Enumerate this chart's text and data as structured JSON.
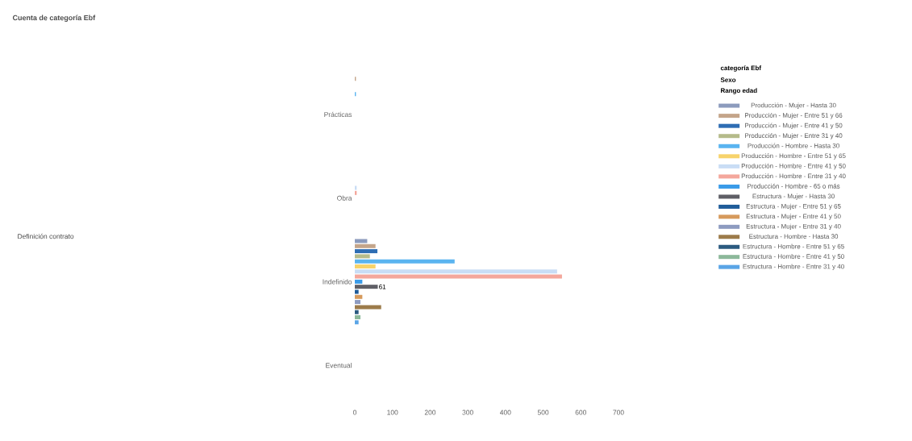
{
  "chart_data": {
    "type": "bar",
    "orientation": "horizontal",
    "title": "Cuenta de categoría Ebf",
    "legend_title": "categoría Ebf",
    "annotations": [
      "Sexo",
      "Rango edad",
      "Definición contrato"
    ],
    "categories": [
      "Prácticas",
      "Obra",
      "Indefinido",
      "Eventual"
    ],
    "xlim": [
      0,
      700
    ],
    "xticks": [
      0,
      100,
      200,
      300,
      400,
      500,
      600,
      700
    ],
    "legend": "right",
    "grid": false,
    "series": [
      {
        "name": "Producción - Mujer - Hasta 30",
        "color": "#8c9bbd",
        "values": [
          null,
          null,
          33,
          null
        ]
      },
      {
        "name": "Producción - Mujer - Entre 51 y 66",
        "color": "#c4a58a",
        "values": [
          3,
          null,
          55,
          null
        ]
      },
      {
        "name": "Producción - Mujer - Entre 41 y 50",
        "color": "#2e6db3",
        "values": [
          null,
          null,
          60,
          null
        ]
      },
      {
        "name": "Producción - Mujer - Entre 31 y 40",
        "color": "#b5bb8a",
        "values": [
          null,
          null,
          40,
          null
        ]
      },
      {
        "name": "Producción - Hombre - Hasta 30",
        "color": "#5ab4f0",
        "values": [
          3,
          null,
          265,
          null
        ]
      },
      {
        "name": "Producción - Hombre - Entre 51 y 65",
        "color": "#f7d36b",
        "values": [
          null,
          null,
          55,
          null
        ]
      },
      {
        "name": "Producción - Hombre - Entre 41 y 50",
        "color": "#c9ddf5",
        "values": [
          null,
          5,
          537,
          null
        ]
      },
      {
        "name": "Producción - Hombre - Entre 31 y 40",
        "color": "#f4a79c",
        "values": [
          null,
          5,
          550,
          null
        ]
      },
      {
        "name": "Producción - Hombre - 65 o más",
        "color": "#3a9be8",
        "values": [
          null,
          null,
          20,
          null
        ]
      },
      {
        "name": "Estructura - Mujer - Hasta 30",
        "color": "#5f5f66",
        "values": [
          null,
          null,
          61,
          null
        ],
        "value_labels": [
          null,
          null,
          "61",
          null
        ]
      },
      {
        "name": "Estructura - Mujer - Entre 51 y 65",
        "color": "#1f5c99",
        "values": [
          null,
          null,
          10,
          null
        ]
      },
      {
        "name": "Estructura - Mujer - Entre 41 y 50",
        "color": "#d69a5c",
        "values": [
          null,
          null,
          20,
          null
        ]
      },
      {
        "name": "Estructura - Mujer - Entre 31 y 40",
        "color": "#8d9bc0",
        "values": [
          null,
          null,
          15,
          null
        ]
      },
      {
        "name": "Estructura - Hombre - Hasta 30",
        "color": "#9c7b4a",
        "values": [
          null,
          null,
          70,
          null
        ]
      },
      {
        "name": "Estructura - Hombre - Entre 51 y 65",
        "color": "#2b5a80",
        "values": [
          null,
          null,
          10,
          null
        ]
      },
      {
        "name": "Estructura - Hombre - Entre 41 y 50",
        "color": "#8cb89a",
        "values": [
          null,
          null,
          15,
          null
        ]
      },
      {
        "name": "Estructura - Hombre - Entre 31 y 40",
        "color": "#5aa5e6",
        "values": [
          null,
          null,
          10,
          null
        ]
      }
    ]
  }
}
